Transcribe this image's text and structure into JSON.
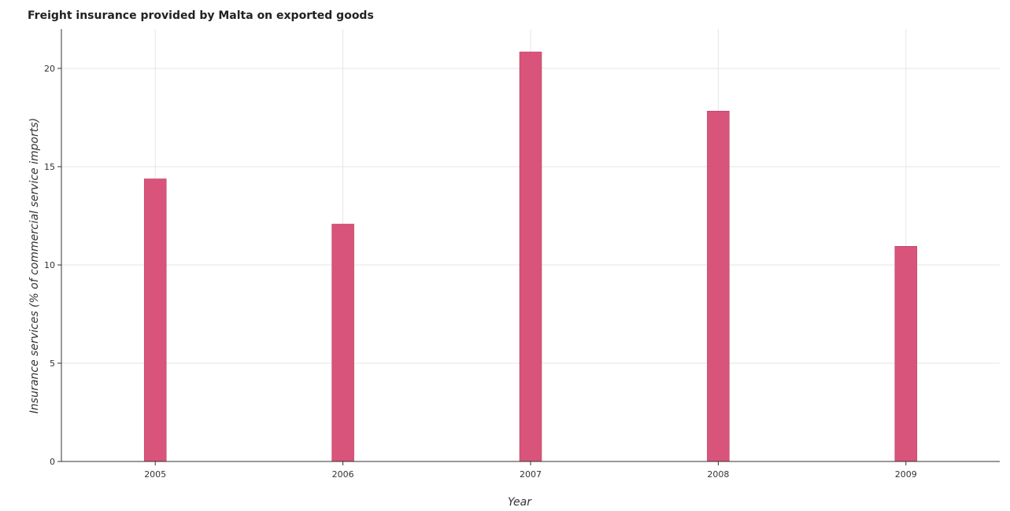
{
  "chart_data": {
    "type": "bar",
    "title": "Freight insurance provided by Malta on exported goods",
    "xlabel": "Year",
    "ylabel": "Insurance services (% of commercial service imports)",
    "categories": [
      "2005",
      "2006",
      "2007",
      "2008",
      "2009"
    ],
    "values": [
      14.38,
      12.08,
      20.84,
      17.83,
      10.95
    ],
    "ylim": [
      0,
      22
    ],
    "yticks": [
      0,
      5,
      10,
      15,
      20
    ],
    "ytick_labels": [
      "0",
      "5",
      "10",
      "15",
      "20"
    ],
    "grid": true,
    "bar_color": "#d9547a",
    "bar_edge_color": "#b13a5e"
  }
}
